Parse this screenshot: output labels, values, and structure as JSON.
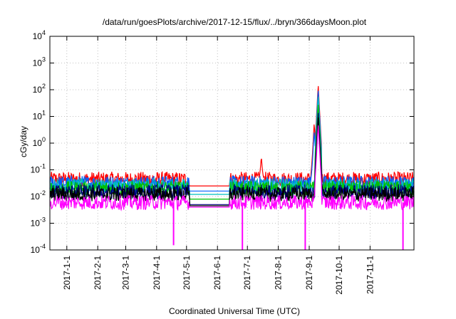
{
  "chart_data": {
    "type": "line",
    "title": "/data/run/goesPlots/archive/2017-12-15/flux/../bryn/366daysMoon.plot",
    "xlabel": "Coordinated Universal Time (UTC)",
    "ylabel": "cGy/day",
    "x_range": [
      "2016-12-15",
      "2017-12-15"
    ],
    "y_scale": "log",
    "ylim": [
      0.0001,
      10000
    ],
    "grid": true,
    "y_ticks": [
      {
        "base": "10",
        "exp": "-4"
      },
      {
        "base": "10",
        "exp": "-3"
      },
      {
        "base": "10",
        "exp": "-2"
      },
      {
        "base": "10",
        "exp": "-1"
      },
      {
        "base": "10",
        "exp": "0"
      },
      {
        "base": "10",
        "exp": "1"
      },
      {
        "base": "10",
        "exp": "2"
      },
      {
        "base": "10",
        "exp": "3"
      },
      {
        "base": "10",
        "exp": "4"
      }
    ],
    "x_ticks": [
      "2017-1-1",
      "2017-2-1",
      "2017-3-1",
      "2017-4-1",
      "2017-5-1",
      "2017-6-1",
      "2017-7-1",
      "2017-8-1",
      "2017-9-1",
      "2017-10-1",
      "2017-11-1"
    ],
    "gap": {
      "start": "2017-5-4",
      "end": "2017-6-13"
    },
    "series": [
      {
        "color": "#ff0000",
        "baseline": 0.045,
        "gap_level": 0.025,
        "peaks": [
          {
            "date": "2017-7-15",
            "value": 0.35
          },
          {
            "date": "2017-9-6",
            "value": 6
          },
          {
            "date": "2017-9-10",
            "value": 150
          }
        ]
      },
      {
        "color": "#0060ff",
        "baseline": 0.032,
        "gap_level": 0.016,
        "peaks": [
          {
            "date": "2017-9-6",
            "value": 3
          },
          {
            "date": "2017-9-10",
            "value": 100
          }
        ]
      },
      {
        "color": "#00bfbf",
        "baseline": 0.025,
        "gap_level": 0.012,
        "peaks": [
          {
            "date": "2017-9-10",
            "value": 60
          }
        ]
      },
      {
        "color": "#00c000",
        "baseline": 0.02,
        "gap_level": 0.008,
        "peaks": [
          {
            "date": "2017-9-10",
            "value": 30
          }
        ]
      },
      {
        "color": "#000080",
        "baseline": 0.015,
        "gap_level": 0.005,
        "peaks": [
          {
            "date": "2017-9-10",
            "value": 15
          }
        ]
      },
      {
        "color": "#000000",
        "baseline": 0.012,
        "gap_level": 0.0045,
        "peaks": [
          {
            "date": "2017-9-10",
            "value": 10
          }
        ]
      },
      {
        "color": "#ff00ff",
        "baseline": 0.006,
        "gap_level": 0.004,
        "peaks": [
          {
            "date": "2017-9-10",
            "value": 5
          }
        ],
        "dips": [
          {
            "date": "2017-4-18",
            "value": 0.00015
          },
          {
            "date": "2017-6-26",
            "value": 0.0001
          },
          {
            "date": "2017-8-28",
            "value": 0.0001
          },
          {
            "date": "2017-12-4",
            "value": 0.0001
          }
        ]
      }
    ]
  }
}
